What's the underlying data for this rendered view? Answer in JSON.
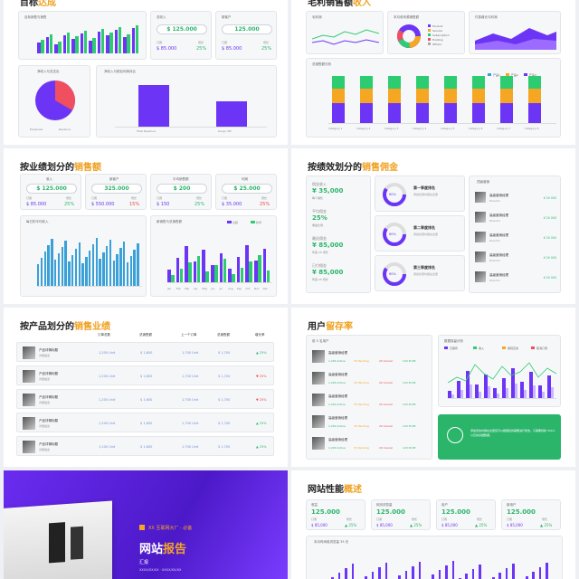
{
  "colors": {
    "purple": "#6c35f5",
    "green": "#2ecc71",
    "orange": "#f5a623",
    "red": "#ef4f5f",
    "blue": "#3aa0d8"
  },
  "panel1": {
    "title_a": "目标",
    "title_b": "达成",
    "c1_title": "目标销售与销售",
    "kpi1_label": "总收入",
    "kpi1_value": "$ 125.000",
    "kpi1_sub": "订阅",
    "kpi1_sub2": "增长",
    "kpi1_amt": "$ 85.000",
    "kpi1_pct": "25%",
    "kpi2_label": "新客户",
    "kpi2_value": "125.000",
    "kpi2_sub": "订阅",
    "kpi2_sub2": "增长",
    "kpi2_amt": "$ 85.000",
    "kpi2_pct": "25%",
    "pie_title": "净收入与总支出",
    "pie_leg1": "Expenses",
    "pie_leg2": "Revenue",
    "bar_title": "净收入与税后利润对比",
    "bar_x1": "Total Revenue",
    "bar_x2": "Gorgo 4M"
  },
  "panel2": {
    "title_a": "毛利销售额",
    "title_b": "收入",
    "c1_title": "毛利润",
    "c2_title": "本月收来源销售额",
    "c3_title": "付费增长与利润",
    "c4_title": "总销售额分析",
    "leg": [
      "产品1",
      "产品2",
      "产品3"
    ],
    "categories": [
      "Category 1",
      "Category 2",
      "Category 3",
      "Category 4",
      "Category 5",
      "Category 6",
      "Category 7",
      "Category 8"
    ],
    "donut_leg": [
      "Product",
      "Service",
      "Subscription",
      "Hosting",
      "Others"
    ]
  },
  "panel3": {
    "title_a": "按业绩划分的",
    "title_b": "销售额",
    "k1_label": "收入",
    "k1_value": "$ 125.000",
    "k1_amt": "$ 85.000",
    "k1_pct": "25%",
    "k2_label": "新客户",
    "k2_value": "325.000",
    "k2_amt": "$ 550.000",
    "k2_pct": "15%",
    "k3_label": "平均销售额",
    "k3_value": "$ 200",
    "k3_amt": "$ 150",
    "k3_pct": "25%",
    "k4_label": "利润",
    "k4_value": "$ 25.000",
    "k4_amt": "$ 35.000",
    "k4_pct": "25%",
    "sub": "订阅",
    "sub2": "增长",
    "chart1_title": "每日的平均收入",
    "chart2_title": "新销售与总销售额",
    "leg1": "总额",
    "leg2": "新增",
    "months": [
      "Jan",
      "Feb",
      "Mar",
      "Apr",
      "May",
      "Jun",
      "Jul",
      "Aug",
      "Sep",
      "Oct",
      "Nov",
      "Dec"
    ]
  },
  "panel4": {
    "title_a": "按绩效划分的",
    "title_b": "销售佣金",
    "l1": "佣金收入",
    "v1": "¥ 35,000",
    "s1": "每个销售",
    "l2": "平均佣金",
    "v2": "25%",
    "s2": "佣金比例",
    "l3": "最佳佣金",
    "v3": "¥ 85,000",
    "s3": "年度 25 增长",
    "l4": "已付佣金",
    "v4": "¥ 85,000",
    "s4": "年度 25 增长",
    "ring1_t": "第一季度排名",
    "ring2_t": "第二季度排名",
    "ring3_t": "第三季度排名",
    "ring_desc": "添加标题内容在这里",
    "ring_pct": "60%",
    "list_title": "顶级营销",
    "list": [
      {
        "name": "高级营销经理",
        "role": "Director",
        "val": "¥ 20 000"
      },
      {
        "name": "高级营销经理",
        "role": "Director",
        "val": "¥ 20 000"
      },
      {
        "name": "高级营销经理",
        "role": "Director",
        "val": "¥ 20 000"
      },
      {
        "name": "高级营销经理",
        "role": "Director",
        "val": "¥ 20 000"
      },
      {
        "name": "高级营销经理",
        "role": "Director",
        "val": "¥ 20 000"
      }
    ]
  },
  "panel5": {
    "title_a": "按产品划分的",
    "title_b": "销售业绩",
    "headers": [
      "订单总数",
      "总销售额",
      "上一个订单",
      "总销售额",
      "增长率"
    ],
    "rows": [
      {
        "name": "产品详情标题",
        "sub": "详细描述",
        "a": "1,200 Unit",
        "b": "$ 1,600",
        "c": "1,700 Unit",
        "d": "$ 1,700",
        "e": "25%",
        "up": true
      },
      {
        "name": "产品详情标题",
        "sub": "详细描述",
        "a": "1,200 Unit",
        "b": "$ 1,600",
        "c": "1,700 Unit",
        "d": "$ 1,700",
        "e": "25%",
        "up": false
      },
      {
        "name": "产品详情标题",
        "sub": "详细描述",
        "a": "1,200 Unit",
        "b": "$ 1,600",
        "c": "1,700 Unit",
        "d": "$ 1,700",
        "e": "25%",
        "up": false
      },
      {
        "name": "产品详情标题",
        "sub": "详细描述",
        "a": "1,200 Unit",
        "b": "$ 1,600",
        "c": "1,700 Unit",
        "d": "$ 1,700",
        "e": "25%",
        "up": true
      },
      {
        "name": "产品详情标题",
        "sub": "详细描述",
        "a": "1,200 Unit",
        "b": "$ 1,600",
        "c": "1,700 Unit",
        "d": "$ 1,700",
        "e": "25%",
        "up": true
      }
    ]
  },
  "panel6": {
    "title_a": "用户",
    "title_b": "留存率",
    "list_title": "前 5 名用户",
    "list": [
      {
        "name": "高级营销经理",
        "a": "1,200 Active",
        "b": "35 Pending",
        "c": "20 Cancel",
        "d": "120 Profit"
      },
      {
        "name": "高级营销经理",
        "a": "1,200 Active",
        "b": "35 Pending",
        "c": "20 Cancel",
        "d": "120 Profit"
      },
      {
        "name": "高级营销经理",
        "a": "1,200 Active",
        "b": "35 Pending",
        "c": "20 Cancel",
        "d": "120 Profit"
      },
      {
        "name": "高级营销经理",
        "a": "1,200 Active",
        "b": "35 Pending",
        "c": "20 Cancel",
        "d": "120 Profit"
      },
      {
        "name": "高级营销经理",
        "a": "1,200 Active",
        "b": "35 Pending",
        "c": "20 Cancel",
        "d": "120 Profit"
      }
    ],
    "chart_title": "数据保留分析",
    "leg": [
      "已留存",
      "收入",
      "保持互动",
      "取消订阅"
    ],
    "note": "添加您的内容在这里您可以根据您的需要进行修改，只需要替换 500人以及的基础数据。"
  },
  "cover": {
    "tag": "XX 互联网大厂 · 必备",
    "title_a": "网站",
    "title_b": "报告",
    "sub": "汇报",
    "date": "XXXX/XX/XX · XXXX/XX/XX"
  },
  "panel8": {
    "title_a": "网站性能",
    "title_b": "概述",
    "k1_l": "收益",
    "k1_v": "125.000",
    "k2_l": "网页浏览量",
    "k2_v": "125.000",
    "k3_l": "用户",
    "k3_v": "125.000",
    "k4_l": "新用户",
    "k4_v": "125.000",
    "sub": "订阅",
    "sub2": "增长",
    "amt": "$ 85,000",
    "pct": "25%",
    "chart_title": "本月时间段浏览量 35 天"
  }
}
